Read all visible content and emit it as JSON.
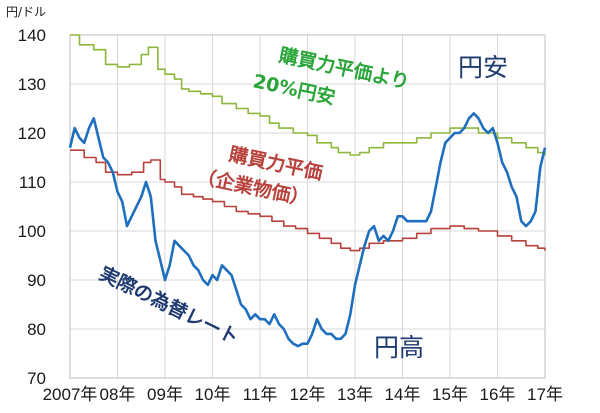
{
  "chart_data": {
    "type": "line",
    "unit_label": "円/ドル",
    "x_ticks": [
      "2007年",
      "08年",
      "09年",
      "10年",
      "11年",
      "12年",
      "13年",
      "14年",
      "15年",
      "16年",
      "17年"
    ],
    "y_ticks": [
      70,
      80,
      90,
      100,
      110,
      120,
      130,
      140
    ],
    "xlim": [
      2007,
      2017
    ],
    "ylim": [
      70,
      140
    ],
    "grid": true,
    "colors": {
      "ppp_plus20": "#8db63c",
      "ppp": "#b8413c",
      "actual": "#1f6fbf"
    },
    "series": [
      {
        "key": "ppp_plus20",
        "label_lines": [
          "購買力平価より",
          "20%円安"
        ],
        "points": [
          [
            2007.0,
            140
          ],
          [
            2007.2,
            138
          ],
          [
            2007.5,
            137
          ],
          [
            2007.75,
            134
          ],
          [
            2008.0,
            133.5
          ],
          [
            2008.25,
            134
          ],
          [
            2008.5,
            136
          ],
          [
            2008.65,
            137.5
          ],
          [
            2008.85,
            133
          ],
          [
            2009.0,
            132
          ],
          [
            2009.2,
            131
          ],
          [
            2009.35,
            129
          ],
          [
            2009.5,
            128.5
          ],
          [
            2009.75,
            128
          ],
          [
            2010.0,
            127.5
          ],
          [
            2010.2,
            126
          ],
          [
            2010.5,
            125
          ],
          [
            2010.75,
            124
          ],
          [
            2011.0,
            123.5
          ],
          [
            2011.2,
            122
          ],
          [
            2011.4,
            121
          ],
          [
            2011.7,
            120
          ],
          [
            2012.0,
            119.5
          ],
          [
            2012.2,
            118
          ],
          [
            2012.5,
            117
          ],
          [
            2012.65,
            116
          ],
          [
            2012.9,
            115.5
          ],
          [
            2013.1,
            116
          ],
          [
            2013.3,
            117
          ],
          [
            2013.6,
            118
          ],
          [
            2014.0,
            118
          ],
          [
            2014.3,
            119
          ],
          [
            2014.6,
            120
          ],
          [
            2015.0,
            121
          ],
          [
            2015.3,
            121
          ],
          [
            2015.6,
            120
          ],
          [
            2016.0,
            119
          ],
          [
            2016.3,
            118
          ],
          [
            2016.6,
            117
          ],
          [
            2016.85,
            116
          ],
          [
            2017.0,
            115.5
          ]
        ]
      },
      {
        "key": "ppp",
        "label_lines": [
          "購買力平価",
          "（企業物価）"
        ],
        "points": [
          [
            2007.0,
            116.5
          ],
          [
            2007.3,
            115
          ],
          [
            2007.55,
            114
          ],
          [
            2007.75,
            112
          ],
          [
            2008.0,
            111.5
          ],
          [
            2008.3,
            112
          ],
          [
            2008.55,
            114
          ],
          [
            2008.7,
            114.5
          ],
          [
            2008.9,
            110.5
          ],
          [
            2009.0,
            110
          ],
          [
            2009.2,
            109
          ],
          [
            2009.35,
            107.5
          ],
          [
            2009.6,
            107
          ],
          [
            2009.8,
            106.5
          ],
          [
            2010.0,
            106
          ],
          [
            2010.25,
            105
          ],
          [
            2010.5,
            104
          ],
          [
            2010.75,
            103.5
          ],
          [
            2011.0,
            103
          ],
          [
            2011.25,
            102
          ],
          [
            2011.5,
            101
          ],
          [
            2011.75,
            100.5
          ],
          [
            2012.0,
            99.5
          ],
          [
            2012.25,
            98.5
          ],
          [
            2012.5,
            97.5
          ],
          [
            2012.7,
            96.5
          ],
          [
            2012.9,
            96
          ],
          [
            2013.1,
            96.5
          ],
          [
            2013.3,
            97.5
          ],
          [
            2013.6,
            98
          ],
          [
            2014.0,
            98.5
          ],
          [
            2014.3,
            99.5
          ],
          [
            2014.6,
            100.5
          ],
          [
            2015.0,
            101
          ],
          [
            2015.3,
            100.5
          ],
          [
            2015.6,
            100
          ],
          [
            2016.0,
            99
          ],
          [
            2016.3,
            98
          ],
          [
            2016.6,
            97
          ],
          [
            2016.85,
            96.5
          ],
          [
            2017.0,
            96
          ]
        ]
      },
      {
        "key": "actual",
        "label": "実際の為替レート",
        "points": [
          [
            2007.0,
            117
          ],
          [
            2007.1,
            121
          ],
          [
            2007.2,
            119
          ],
          [
            2007.3,
            118
          ],
          [
            2007.4,
            121
          ],
          [
            2007.5,
            123
          ],
          [
            2007.6,
            119
          ],
          [
            2007.7,
            115
          ],
          [
            2007.8,
            114
          ],
          [
            2007.9,
            112
          ],
          [
            2008.0,
            108
          ],
          [
            2008.1,
            106
          ],
          [
            2008.2,
            101
          ],
          [
            2008.3,
            103
          ],
          [
            2008.4,
            105
          ],
          [
            2008.5,
            107
          ],
          [
            2008.6,
            110
          ],
          [
            2008.7,
            107
          ],
          [
            2008.8,
            98
          ],
          [
            2008.9,
            94
          ],
          [
            2009.0,
            90
          ],
          [
            2009.1,
            93
          ],
          [
            2009.2,
            98
          ],
          [
            2009.3,
            97
          ],
          [
            2009.4,
            96
          ],
          [
            2009.5,
            95
          ],
          [
            2009.6,
            93
          ],
          [
            2009.7,
            92
          ],
          [
            2009.8,
            90
          ],
          [
            2009.9,
            89
          ],
          [
            2010.0,
            91
          ],
          [
            2010.1,
            90
          ],
          [
            2010.2,
            93
          ],
          [
            2010.3,
            92
          ],
          [
            2010.4,
            91
          ],
          [
            2010.5,
            88
          ],
          [
            2010.6,
            85
          ],
          [
            2010.7,
            84
          ],
          [
            2010.8,
            82
          ],
          [
            2010.9,
            83
          ],
          [
            2011.0,
            82
          ],
          [
            2011.1,
            82
          ],
          [
            2011.2,
            81
          ],
          [
            2011.3,
            83
          ],
          [
            2011.4,
            81
          ],
          [
            2011.5,
            80
          ],
          [
            2011.6,
            78
          ],
          [
            2011.7,
            77
          ],
          [
            2011.8,
            76.5
          ],
          [
            2011.9,
            77
          ],
          [
            2012.0,
            77
          ],
          [
            2012.1,
            79
          ],
          [
            2012.2,
            82
          ],
          [
            2012.3,
            80
          ],
          [
            2012.4,
            79
          ],
          [
            2012.5,
            79
          ],
          [
            2012.6,
            78
          ],
          [
            2012.7,
            78
          ],
          [
            2012.8,
            79
          ],
          [
            2012.9,
            83
          ],
          [
            2013.0,
            89
          ],
          [
            2013.1,
            93
          ],
          [
            2013.2,
            97
          ],
          [
            2013.3,
            100
          ],
          [
            2013.4,
            101
          ],
          [
            2013.5,
            98
          ],
          [
            2013.6,
            99
          ],
          [
            2013.7,
            98
          ],
          [
            2013.8,
            100
          ],
          [
            2013.9,
            103
          ],
          [
            2014.0,
            103
          ],
          [
            2014.1,
            102
          ],
          [
            2014.2,
            102
          ],
          [
            2014.3,
            102
          ],
          [
            2014.4,
            102
          ],
          [
            2014.5,
            102
          ],
          [
            2014.6,
            104
          ],
          [
            2014.7,
            109
          ],
          [
            2014.8,
            114
          ],
          [
            2014.9,
            118
          ],
          [
            2015.0,
            119
          ],
          [
            2015.1,
            120
          ],
          [
            2015.2,
            120
          ],
          [
            2015.3,
            121
          ],
          [
            2015.4,
            123
          ],
          [
            2015.5,
            124
          ],
          [
            2015.6,
            123
          ],
          [
            2015.7,
            121
          ],
          [
            2015.8,
            120
          ],
          [
            2015.9,
            121
          ],
          [
            2016.0,
            118
          ],
          [
            2016.1,
            114
          ],
          [
            2016.2,
            112
          ],
          [
            2016.3,
            109
          ],
          [
            2016.4,
            107
          ],
          [
            2016.5,
            102
          ],
          [
            2016.6,
            101
          ],
          [
            2016.7,
            102
          ],
          [
            2016.8,
            104
          ],
          [
            2016.9,
            113
          ],
          [
            2017.0,
            117
          ]
        ]
      }
    ],
    "annotations": {
      "weak_yen": "円安",
      "strong_yen": "円高"
    }
  }
}
